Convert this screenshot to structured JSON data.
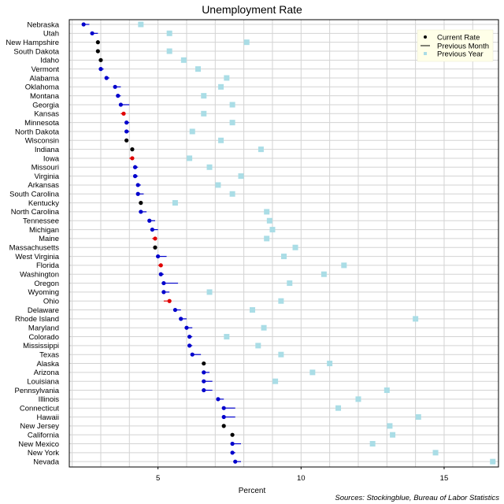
{
  "chart_data": {
    "type": "scatter",
    "title": "Unemployment Rate",
    "xlabel": "Percent",
    "source": "Sources: Stockingblue, Bureau of Labor Statistics",
    "xlim": [
      1.9,
      16.9
    ],
    "xticks": [
      5,
      10,
      15
    ],
    "grid": true,
    "legend_position": "top-right",
    "legend": {
      "current": "Current Rate",
      "previous_month": "Previous Month",
      "previous_year": "Previous Year"
    },
    "colors": {
      "increase": "#e00000",
      "decrease": "#0000cc",
      "unchanged": "#000000",
      "previous_year": "#aadde6",
      "grid": "#d3d3d3",
      "frame": "#000000"
    },
    "states": [
      {
        "name": "Nebraska",
        "current": 2.4,
        "prev_month": 2.6,
        "prev_year": 4.4
      },
      {
        "name": "Utah",
        "current": 2.7,
        "prev_month": 2.9,
        "prev_year": 5.4
      },
      {
        "name": "New Hampshire",
        "current": 2.9,
        "prev_month": 2.9,
        "prev_year": 8.1
      },
      {
        "name": "South Dakota",
        "current": 2.9,
        "prev_month": 2.9,
        "prev_year": 5.4
      },
      {
        "name": "Idaho",
        "current": 3.0,
        "prev_month": 3.0,
        "prev_year": 5.9
      },
      {
        "name": "Vermont",
        "current": 3.0,
        "prev_month": 3.1,
        "prev_year": 6.4
      },
      {
        "name": "Alabama",
        "current": 3.2,
        "prev_month": 3.3,
        "prev_year": 7.4
      },
      {
        "name": "Oklahoma",
        "current": 3.5,
        "prev_month": 3.7,
        "prev_year": 7.2
      },
      {
        "name": "Montana",
        "current": 3.6,
        "prev_month": 3.7,
        "prev_year": 6.6
      },
      {
        "name": "Georgia",
        "current": 3.7,
        "prev_month": 4.0,
        "prev_year": 7.6
      },
      {
        "name": "Kansas",
        "current": 3.8,
        "prev_month": 3.7,
        "prev_year": 6.6
      },
      {
        "name": "Minnesota",
        "current": 3.9,
        "prev_month": 4.0,
        "prev_year": 7.6
      },
      {
        "name": "North Dakota",
        "current": 3.9,
        "prev_month": 4.0,
        "prev_year": 6.2
      },
      {
        "name": "Wisconsin",
        "current": 3.9,
        "prev_month": 3.9,
        "prev_year": 7.2
      },
      {
        "name": "Indiana",
        "current": 4.1,
        "prev_month": 4.1,
        "prev_year": 8.6
      },
      {
        "name": "Iowa",
        "current": 4.1,
        "prev_month": 4.0,
        "prev_year": 6.1
      },
      {
        "name": "Missouri",
        "current": 4.2,
        "prev_month": 4.3,
        "prev_year": 6.8
      },
      {
        "name": "Virginia",
        "current": 4.2,
        "prev_month": 4.3,
        "prev_year": 7.9
      },
      {
        "name": "Arkansas",
        "current": 4.3,
        "prev_month": 4.4,
        "prev_year": 7.1
      },
      {
        "name": "South Carolina",
        "current": 4.3,
        "prev_month": 4.5,
        "prev_year": 7.6
      },
      {
        "name": "Kentucky",
        "current": 4.4,
        "prev_month": 4.4,
        "prev_year": 5.6
      },
      {
        "name": "North Carolina",
        "current": 4.4,
        "prev_month": 4.6,
        "prev_year": 8.8
      },
      {
        "name": "Tennessee",
        "current": 4.7,
        "prev_month": 4.9,
        "prev_year": 8.9
      },
      {
        "name": "Michigan",
        "current": 4.8,
        "prev_month": 5.0,
        "prev_year": 9.0
      },
      {
        "name": "Maine",
        "current": 4.9,
        "prev_month": 4.8,
        "prev_year": 8.8
      },
      {
        "name": "Massachusetts",
        "current": 4.9,
        "prev_month": 4.9,
        "prev_year": 9.8
      },
      {
        "name": "West Virginia",
        "current": 5.0,
        "prev_month": 5.3,
        "prev_year": 9.4
      },
      {
        "name": "Florida",
        "current": 5.1,
        "prev_month": 5.0,
        "prev_year": 11.5
      },
      {
        "name": "Washington",
        "current": 5.1,
        "prev_month": 5.2,
        "prev_year": 10.8
      },
      {
        "name": "Oregon",
        "current": 5.2,
        "prev_month": 5.7,
        "prev_year": 9.6
      },
      {
        "name": "Wyoming",
        "current": 5.2,
        "prev_month": 5.4,
        "prev_year": 6.8
      },
      {
        "name": "Ohio",
        "current": 5.4,
        "prev_month": 5.2,
        "prev_year": 9.3
      },
      {
        "name": "Delaware",
        "current": 5.6,
        "prev_month": 5.8,
        "prev_year": 8.3
      },
      {
        "name": "Rhode Island",
        "current": 5.8,
        "prev_month": 6.0,
        "prev_year": 14.0
      },
      {
        "name": "Maryland",
        "current": 6.0,
        "prev_month": 6.2,
        "prev_year": 8.7
      },
      {
        "name": "Colorado",
        "current": 6.1,
        "prev_month": 6.2,
        "prev_year": 7.4
      },
      {
        "name": "Mississippi",
        "current": 6.1,
        "prev_month": 6.2,
        "prev_year": 8.5
      },
      {
        "name": "Texas",
        "current": 6.2,
        "prev_month": 6.5,
        "prev_year": 9.3
      },
      {
        "name": "Alaska",
        "current": 6.6,
        "prev_month": 6.6,
        "prev_year": 11.0
      },
      {
        "name": "Arizona",
        "current": 6.6,
        "prev_month": 6.8,
        "prev_year": 10.4
      },
      {
        "name": "Louisiana",
        "current": 6.6,
        "prev_month": 6.9,
        "prev_year": 9.1
      },
      {
        "name": "Pennsylvania",
        "current": 6.6,
        "prev_month": 6.9,
        "prev_year": 13.0
      },
      {
        "name": "Illinois",
        "current": 7.1,
        "prev_month": 7.3,
        "prev_year": 12.0
      },
      {
        "name": "Connecticut",
        "current": 7.3,
        "prev_month": 7.7,
        "prev_year": 11.3
      },
      {
        "name": "Hawaii",
        "current": 7.3,
        "prev_month": 7.7,
        "prev_year": 14.1
      },
      {
        "name": "New Jersey",
        "current": 7.3,
        "prev_month": 7.3,
        "prev_year": 13.1
      },
      {
        "name": "California",
        "current": 7.6,
        "prev_month": 7.6,
        "prev_year": 13.2
      },
      {
        "name": "New Mexico",
        "current": 7.6,
        "prev_month": 7.9,
        "prev_year": 12.5
      },
      {
        "name": "New York",
        "current": 7.6,
        "prev_month": 7.7,
        "prev_year": 14.7
      },
      {
        "name": "Nevada",
        "current": 7.7,
        "prev_month": 7.9,
        "prev_year": 16.7
      }
    ]
  }
}
